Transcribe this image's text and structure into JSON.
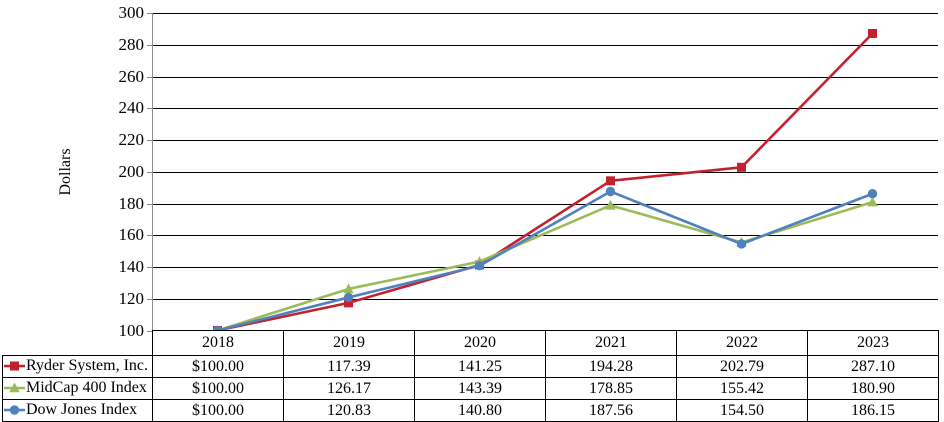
{
  "chart_data": {
    "type": "line",
    "title": "",
    "ylabel": "Dollars",
    "xlabel": "",
    "categories": [
      "2018",
      "2019",
      "2020",
      "2021",
      "2022",
      "2023"
    ],
    "series": [
      {
        "name": "Ryder System, Inc.",
        "values": [
          100.0,
          117.39,
          141.25,
          194.28,
          202.79,
          287.1
        ],
        "color": "#C2222F",
        "marker": "square"
      },
      {
        "name": "MidCap 400 Index",
        "values": [
          100.0,
          126.17,
          143.39,
          178.85,
          155.42,
          180.9
        ],
        "color": "#9BBB59",
        "marker": "triangle"
      },
      {
        "name": "Dow Jones Index",
        "values": [
          100.0,
          120.83,
          140.8,
          187.56,
          154.5,
          186.15
        ],
        "color": "#4F81BD",
        "marker": "circle"
      }
    ],
    "ylim": [
      100,
      300
    ],
    "ytick_step": 20,
    "yticks": [
      "300",
      "280",
      "260",
      "240",
      "220",
      "200",
      "180",
      "160",
      "140",
      "120",
      "100"
    ],
    "grid": true,
    "gridline_color": "#000000",
    "axis_line_color": "#8C8C8C",
    "legend_position": "table-left"
  },
  "table": {
    "years": [
      "2018",
      "2019",
      "2020",
      "2021",
      "2022",
      "2023"
    ],
    "rows": [
      {
        "label": "Ryder System, Inc.",
        "marker_icon": "square-marker-icon",
        "color": "#C2222F",
        "values": [
          "$100.00",
          "117.39",
          "141.25",
          "194.28",
          "202.79",
          "287.10"
        ]
      },
      {
        "label": "MidCap 400 Index",
        "marker_icon": "triangle-marker-icon",
        "color": "#9BBB59",
        "values": [
          "$100.00",
          "126.17",
          "143.39",
          "178.85",
          "155.42",
          "180.90"
        ]
      },
      {
        "label": "Dow Jones Index",
        "marker_icon": "circle-marker-icon",
        "color": "#4F81BD",
        "values": [
          "$100.00",
          "120.83",
          "140.80",
          "187.56",
          "154.50",
          "186.15"
        ]
      }
    ]
  }
}
